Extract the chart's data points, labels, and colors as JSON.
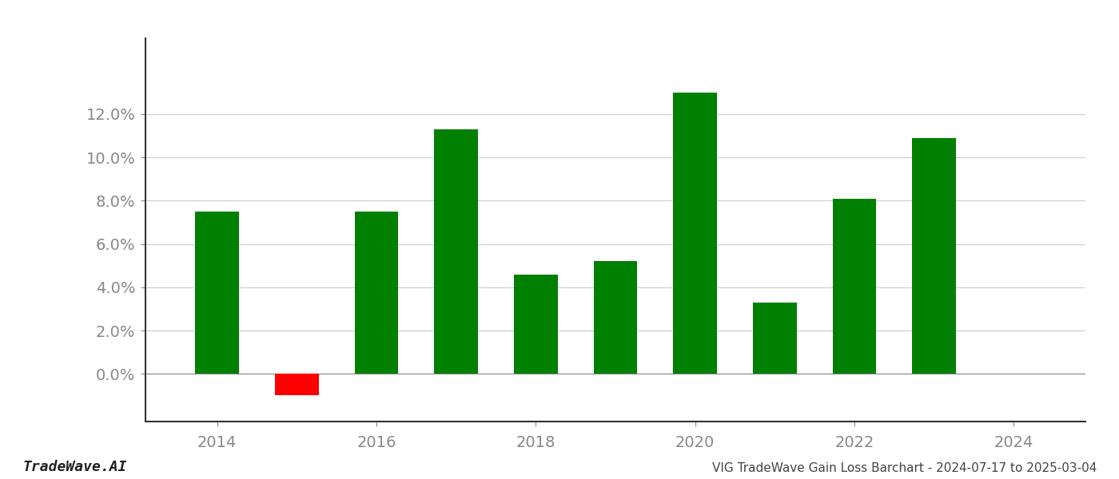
{
  "years": [
    2014,
    2015,
    2016,
    2017,
    2018,
    2019,
    2020,
    2021,
    2022,
    2023
  ],
  "values": [
    0.075,
    -0.01,
    0.075,
    0.113,
    0.046,
    0.052,
    0.13,
    0.033,
    0.081,
    0.109
  ],
  "colors": [
    "#008000",
    "#ff0000",
    "#008000",
    "#008000",
    "#008000",
    "#008000",
    "#008000",
    "#008000",
    "#008000",
    "#008000"
  ],
  "ylim": [
    -0.022,
    0.155
  ],
  "yticks": [
    0.0,
    0.02,
    0.04,
    0.06,
    0.08,
    0.1,
    0.12
  ],
  "xlim": [
    2013.1,
    2024.9
  ],
  "xticks": [
    2014,
    2016,
    2018,
    2020,
    2022,
    2024
  ],
  "bar_width": 0.55,
  "background_color": "#ffffff",
  "grid_color": "#cccccc",
  "axis_color": "#888888",
  "tick_color": "#888888",
  "footer_left": "TradeWave.AI",
  "footer_right": "VIG TradeWave Gain Loss Barchart - 2024-07-17 to 2025-03-04"
}
